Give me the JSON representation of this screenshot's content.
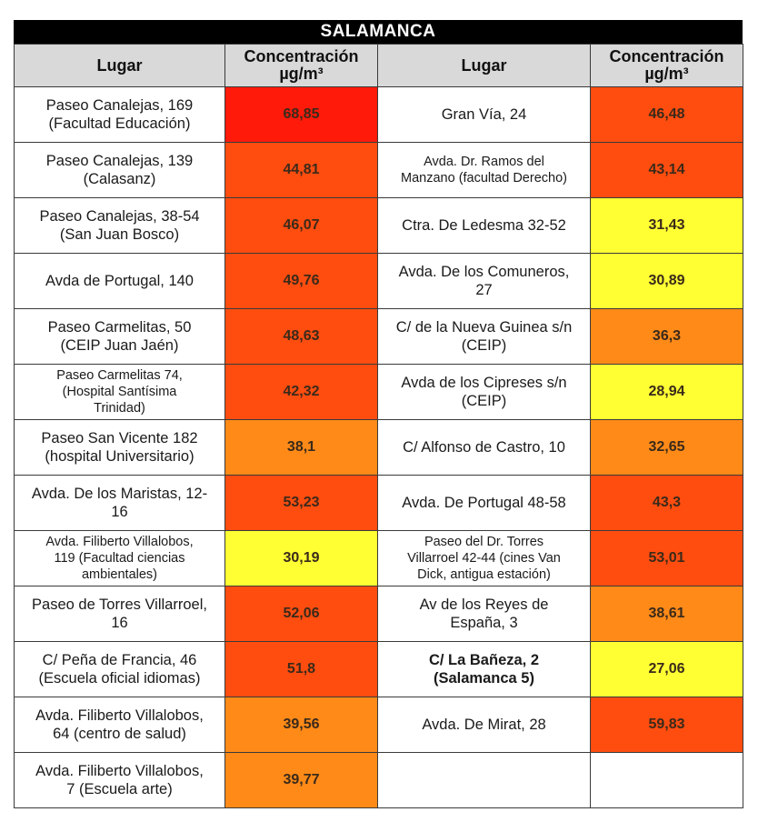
{
  "title": "SALAMANCA",
  "headers": {
    "place": "Lugar",
    "conc_line1": "Concentración",
    "conc_line2": "µg/m³"
  },
  "colors": {
    "red": "#ff1a0a",
    "red_orange": "#ff4d10",
    "orange": "#ff8a18",
    "yellow": "#ffff33",
    "white": "#ffffff"
  },
  "rows": [
    {
      "left_place": [
        "Paseo Canalejas, 169",
        "(Facultad Educación)"
      ],
      "left_value": "68,85",
      "left_color": "red",
      "right_place": [
        "Gran Vía, 24"
      ],
      "right_value": "46,48",
      "right_color": "red_orange"
    },
    {
      "left_place": [
        "Paseo Canalejas, 139",
        "(Calasanz)"
      ],
      "left_value": "44,81",
      "left_color": "red_orange",
      "right_place": [
        "Avda. Dr. Ramos del",
        "Manzano (facultad Derecho)"
      ],
      "right_value": "43,14",
      "right_color": "red_orange",
      "right_small": true
    },
    {
      "left_place": [
        "Paseo Canalejas, 38-54",
        "(San Juan Bosco)"
      ],
      "left_value": "46,07",
      "left_color": "red_orange",
      "right_place": [
        "Ctra. De Ledesma 32-52"
      ],
      "right_value": "31,43",
      "right_color": "yellow"
    },
    {
      "left_place": [
        "Avda de Portugal, 140"
      ],
      "left_value": "49,76",
      "left_color": "red_orange",
      "right_place": [
        "Avda. De los Comuneros,",
        "27"
      ],
      "right_value": "30,89",
      "right_color": "yellow"
    },
    {
      "left_place": [
        "Paseo Carmelitas, 50",
        "(CEIP Juan Jaén)"
      ],
      "left_value": "48,63",
      "left_color": "red_orange",
      "right_place": [
        "C/ de la Nueva Guinea s/n",
        "(CEIP)"
      ],
      "right_value": "36,3",
      "right_color": "orange"
    },
    {
      "left_place": [
        "Paseo Carmelitas 74,",
        "(Hospital Santísima",
        "Trinidad)"
      ],
      "left_value": "42,32",
      "left_color": "red_orange",
      "left_small": true,
      "right_place": [
        "Avda de los Cipreses s/n",
        "(CEIP)"
      ],
      "right_value": "28,94",
      "right_color": "yellow"
    },
    {
      "left_place": [
        "Paseo San Vicente 182",
        "(hospital Universitario)"
      ],
      "left_value": "38,1",
      "left_color": "orange",
      "right_place": [
        "C/ Alfonso de Castro, 10"
      ],
      "right_value": "32,65",
      "right_color": "orange"
    },
    {
      "left_place": [
        "Avda. De los Maristas, 12-",
        "16"
      ],
      "left_value": "53,23",
      "left_color": "red_orange",
      "right_place": [
        "Avda. De Portugal 48-58"
      ],
      "right_value": "43,3",
      "right_color": "red_orange"
    },
    {
      "left_place": [
        "Avda. Filiberto Villalobos,",
        "119 (Facultad ciencias",
        "ambientales)"
      ],
      "left_value": "30,19",
      "left_color": "yellow",
      "left_small": true,
      "right_place": [
        "Paseo del Dr. Torres",
        "Villarroel 42-44 (cines Van",
        "Dick, antigua estación)"
      ],
      "right_value": "53,01",
      "right_color": "red_orange",
      "right_small": true
    },
    {
      "left_place": [
        "Paseo de Torres Villarroel,",
        "16"
      ],
      "left_value": "52,06",
      "left_color": "red_orange",
      "right_place": [
        "Av de los Reyes de",
        "España, 3"
      ],
      "right_value": "38,61",
      "right_color": "orange"
    },
    {
      "left_place": [
        "C/ Peña de Francia, 46",
        "(Escuela oficial idiomas)"
      ],
      "left_value": "51,8",
      "left_color": "red_orange",
      "right_place": [
        "C/ La Bañeza, 2",
        "(Salamanca 5)"
      ],
      "right_value": "27,06",
      "right_color": "yellow",
      "right_bold": true
    },
    {
      "left_place": [
        "Avda. Filiberto Villalobos,",
        "64 (centro de salud)"
      ],
      "left_value": "39,56",
      "left_color": "orange",
      "right_place": [
        "Avda. De Mirat, 28"
      ],
      "right_value": "59,83",
      "right_color": "red_orange"
    },
    {
      "left_place": [
        "Avda. Filiberto Villalobos,",
        "7 (Escuela arte)"
      ],
      "left_value": "39,77",
      "left_color": "orange",
      "right_place": [],
      "right_value": "",
      "right_color": "white"
    }
  ]
}
